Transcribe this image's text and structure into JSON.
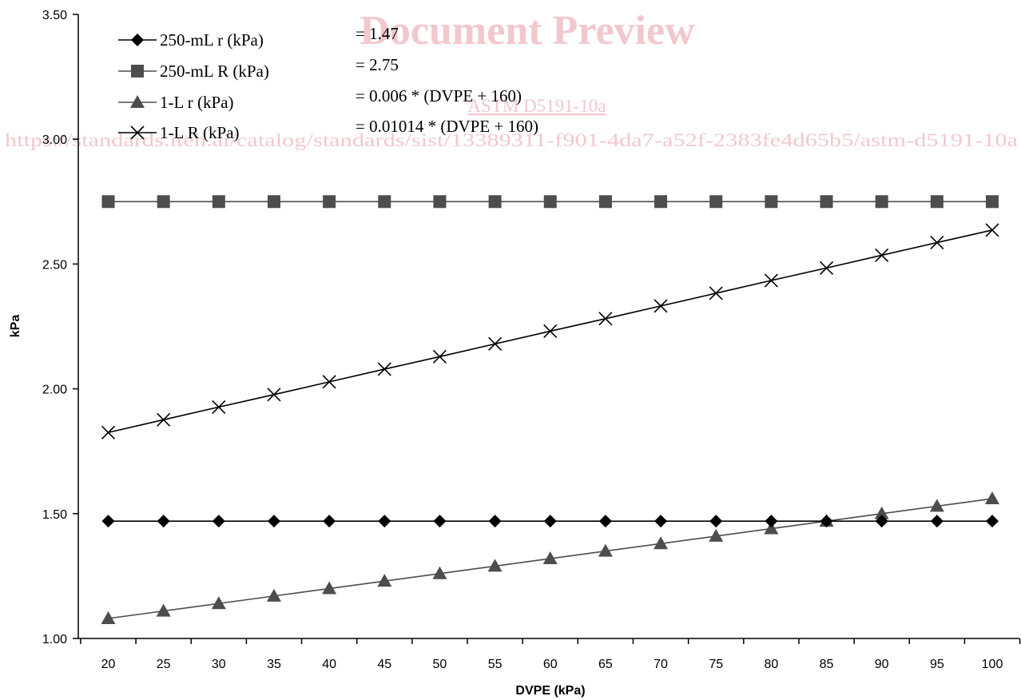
{
  "watermark": {
    "title": "Document Preview",
    "standard": "ASTM D5191-10a",
    "url": "https://standards.iteh.ai/catalog/standards/sist/13389311-f901-4da7-a52f-2383fe4d65b5/astm-d5191-10a"
  },
  "chart_data": {
    "type": "line",
    "xlabel": "DVPE (kPa)",
    "ylabel": "kPa",
    "x": [
      20,
      25,
      30,
      35,
      40,
      45,
      50,
      55,
      60,
      65,
      70,
      75,
      80,
      85,
      90,
      95,
      100
    ],
    "x_tick_labels": [
      "20",
      "25",
      "30",
      "35",
      "40",
      "45",
      "50",
      "55",
      "60",
      "65",
      "70",
      "75",
      "80",
      "85",
      "90",
      "95",
      "100"
    ],
    "ylim": [
      1.0,
      3.5
    ],
    "y_ticks": [
      1.0,
      1.5,
      2.0,
      2.5,
      3.0,
      3.5
    ],
    "y_tick_labels": [
      "1.00",
      "1.50",
      "2.00",
      "2.50",
      "3.00",
      "3.50"
    ],
    "grid": false,
    "legend_position": "top-left",
    "series": [
      {
        "name": "250-mL r (kPa)",
        "formula": "= 1.47",
        "marker": "diamond",
        "color": "#000000",
        "values": [
          1.47,
          1.47,
          1.47,
          1.47,
          1.47,
          1.47,
          1.47,
          1.47,
          1.47,
          1.47,
          1.47,
          1.47,
          1.47,
          1.47,
          1.47,
          1.47,
          1.47
        ]
      },
      {
        "name": "250-mL R (kPa)",
        "formula": "= 2.75",
        "marker": "square",
        "color": "#4d4d4d",
        "values": [
          2.75,
          2.75,
          2.75,
          2.75,
          2.75,
          2.75,
          2.75,
          2.75,
          2.75,
          2.75,
          2.75,
          2.75,
          2.75,
          2.75,
          2.75,
          2.75,
          2.75
        ]
      },
      {
        "name": "1-L r (kPa)",
        "formula": "= 0.006 * (DVPE + 160)",
        "marker": "triangle",
        "color": "#4d4d4d",
        "values": [
          1.08,
          1.11,
          1.14,
          1.17,
          1.2,
          1.23,
          1.26,
          1.29,
          1.32,
          1.35,
          1.38,
          1.41,
          1.44,
          1.47,
          1.5,
          1.53,
          1.56
        ]
      },
      {
        "name": "1-L R (kPa)",
        "formula": "= 0.01014 * (DVPE + 160)",
        "marker": "x",
        "color": "#000000",
        "values": [
          1.825,
          1.876,
          1.927,
          1.977,
          2.028,
          2.079,
          2.129,
          2.18,
          2.231,
          2.281,
          2.332,
          2.383,
          2.434,
          2.484,
          2.535,
          2.586,
          2.636
        ]
      }
    ]
  }
}
